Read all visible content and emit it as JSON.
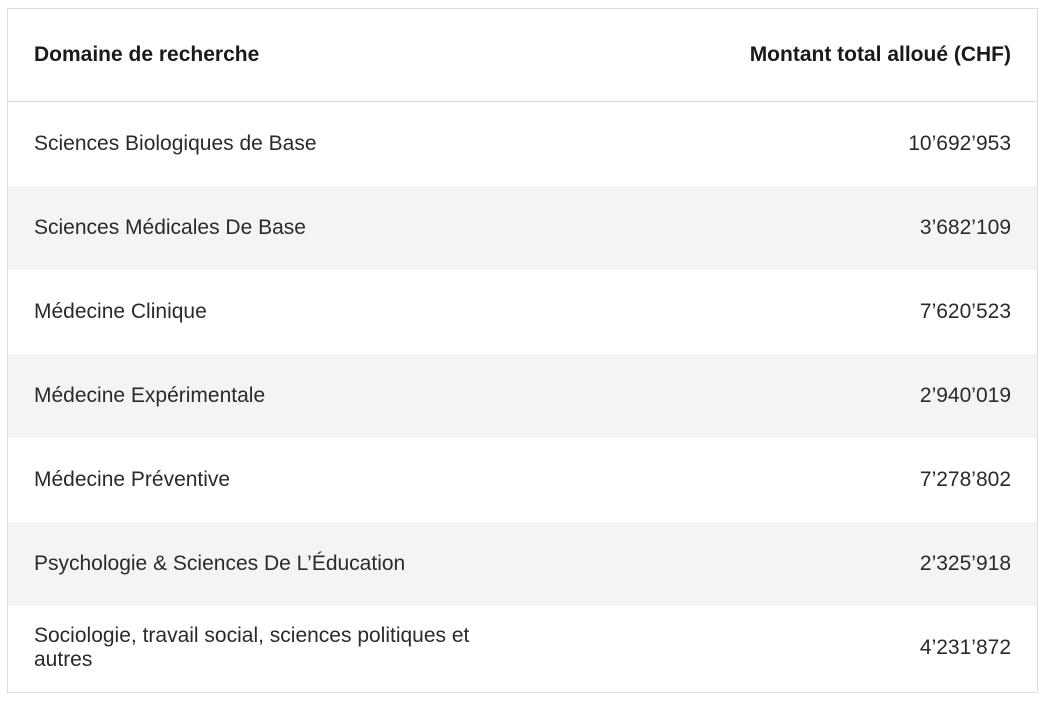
{
  "table": {
    "headers": {
      "domain": "Domaine de recherche",
      "amount": "Montant total alloué (CHF)"
    },
    "rows": [
      {
        "domain": "Sciences Biologiques de Base",
        "amount": "10’692’953"
      },
      {
        "domain": "Sciences Médicales De Base",
        "amount": "3’682’109"
      },
      {
        "domain": "Médecine Clinique",
        "amount": "7’620’523"
      },
      {
        "domain": "Médecine Expérimentale",
        "amount": "2’940’019"
      },
      {
        "domain": "Médecine Préventive",
        "amount": "7’278’802"
      },
      {
        "domain": "Psychologie & Sciences De L’Éducation",
        "amount": "2’325’918"
      },
      {
        "domain": "Sociologie, travail social, sciences politiques et autres",
        "amount": "4’231’872"
      }
    ]
  }
}
